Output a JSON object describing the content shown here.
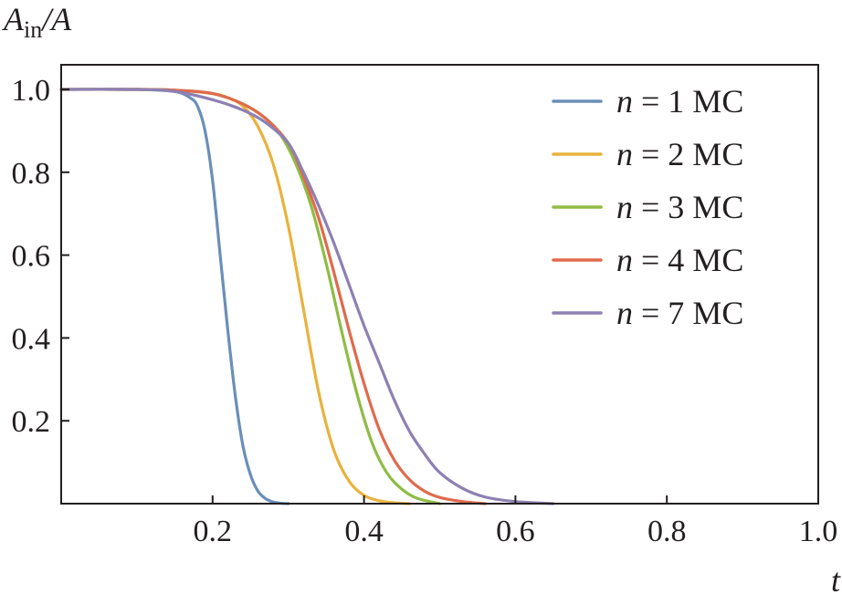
{
  "chart_data": {
    "type": "line",
    "ylabel": {
      "main": "A",
      "sub": "in",
      "suffix": "/A"
    },
    "xlabel": "t",
    "xlim": [
      0,
      1.0
    ],
    "ylim": [
      0,
      1.05
    ],
    "x_ticks": [
      0.2,
      0.4,
      0.6,
      0.8,
      1.0
    ],
    "x_tick_labels": [
      "0.2",
      "0.4",
      "0.6",
      "0.8",
      "1.0"
    ],
    "y_ticks": [
      0.2,
      0.4,
      0.6,
      0.8,
      1.0
    ],
    "y_tick_labels": [
      "0.2",
      "0.4",
      "0.6",
      "0.8",
      "1.0"
    ],
    "grid": false,
    "legend_position": "top-right",
    "series": [
      {
        "name": "n = 1 MC",
        "legend_n": "n",
        "legend_rest": " = 1 MC",
        "color": "#6a8fb8",
        "x": [
          0,
          0.1,
          0.15,
          0.17,
          0.18,
          0.19,
          0.2,
          0.21,
          0.22,
          0.23,
          0.24,
          0.25,
          0.26,
          0.27,
          0.28,
          0.29,
          0.3
        ],
        "y": [
          1.0,
          1.0,
          0.995,
          0.98,
          0.96,
          0.9,
          0.78,
          0.6,
          0.42,
          0.26,
          0.14,
          0.07,
          0.03,
          0.012,
          0.004,
          0.001,
          0
        ]
      },
      {
        "name": "n = 2 MC",
        "legend_n": "n",
        "legend_rest": " = 2 MC",
        "color": "#e9b23c",
        "x": [
          0,
          0.1,
          0.15,
          0.2,
          0.22,
          0.24,
          0.26,
          0.28,
          0.3,
          0.32,
          0.34,
          0.36,
          0.38,
          0.4,
          0.42,
          0.44,
          0.46
        ],
        "y": [
          1.0,
          1.0,
          0.998,
          0.99,
          0.98,
          0.96,
          0.91,
          0.82,
          0.67,
          0.47,
          0.27,
          0.13,
          0.055,
          0.02,
          0.007,
          0.002,
          0
        ]
      },
      {
        "name": "n = 3 MC",
        "legend_n": "n",
        "legend_rest": " = 3 MC",
        "color": "#8fbc45",
        "x": [
          0,
          0.1,
          0.15,
          0.2,
          0.24,
          0.27,
          0.29,
          0.31,
          0.33,
          0.35,
          0.37,
          0.39,
          0.41,
          0.43,
          0.45,
          0.47,
          0.5
        ],
        "y": [
          1.0,
          1.0,
          0.998,
          0.99,
          0.965,
          0.93,
          0.89,
          0.82,
          0.72,
          0.58,
          0.42,
          0.27,
          0.15,
          0.075,
          0.035,
          0.013,
          0
        ]
      },
      {
        "name": "n = 4 MC",
        "legend_n": "n",
        "legend_rest": " = 4 MC",
        "color": "#e06a4c",
        "x": [
          0,
          0.1,
          0.15,
          0.2,
          0.24,
          0.27,
          0.3,
          0.32,
          0.34,
          0.36,
          0.38,
          0.4,
          0.42,
          0.44,
          0.46,
          0.48,
          0.5,
          0.53,
          0.56
        ],
        "y": [
          1.0,
          1.0,
          0.998,
          0.99,
          0.965,
          0.93,
          0.87,
          0.79,
          0.69,
          0.56,
          0.42,
          0.29,
          0.18,
          0.105,
          0.058,
          0.03,
          0.015,
          0.005,
          0
        ]
      },
      {
        "name": "n = 7 MC",
        "legend_n": "n",
        "legend_rest": " = 7 MC",
        "color": "#8d80b3",
        "x": [
          0,
          0.1,
          0.15,
          0.2,
          0.24,
          0.27,
          0.3,
          0.32,
          0.34,
          0.36,
          0.38,
          0.4,
          0.42,
          0.44,
          0.46,
          0.48,
          0.5,
          0.53,
          0.56,
          0.6,
          0.65
        ],
        "y": [
          1.0,
          1.0,
          0.995,
          0.975,
          0.95,
          0.92,
          0.87,
          0.8,
          0.72,
          0.63,
          0.53,
          0.43,
          0.34,
          0.25,
          0.175,
          0.12,
          0.075,
          0.037,
          0.016,
          0.005,
          0
        ]
      }
    ]
  }
}
